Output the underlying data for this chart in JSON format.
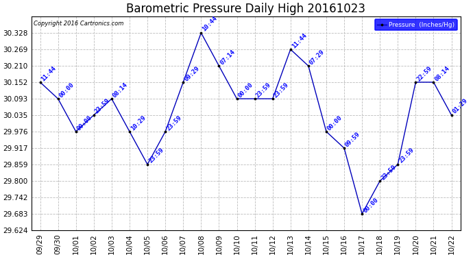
{
  "title": "Barometric Pressure Daily High 20161023",
  "copyright": "Copyright 2016 Cartronics.com",
  "legend_label": "Pressure  (Inches/Hg)",
  "xlabel_dates": [
    "09/29",
    "09/30",
    "10/01",
    "10/02",
    "10/03",
    "10/04",
    "10/05",
    "10/06",
    "10/07",
    "10/08",
    "10/09",
    "10/10",
    "10/11",
    "10/12",
    "10/13",
    "10/14",
    "10/15",
    "10/16",
    "10/17",
    "10/18",
    "10/19",
    "10/20",
    "10/21",
    "10/22"
  ],
  "x_indices": [
    0,
    1,
    2,
    3,
    4,
    5,
    6,
    7,
    8,
    9,
    10,
    11,
    12,
    13,
    14,
    15,
    16,
    17,
    18,
    19,
    20,
    21,
    22,
    23
  ],
  "y_values": [
    30.152,
    30.093,
    29.976,
    30.035,
    30.093,
    29.976,
    29.859,
    29.976,
    30.152,
    30.328,
    30.21,
    30.093,
    30.093,
    30.093,
    30.269,
    30.21,
    29.976,
    29.917,
    29.683,
    29.8,
    29.859,
    30.152,
    30.152,
    30.035
  ],
  "point_labels": [
    "11:44",
    "00:00",
    "00:00",
    "23:59",
    "08:14",
    "10:29",
    "23:59",
    "23:59",
    "09:29",
    "10:44",
    "07:14",
    "00:00",
    "23:59",
    "23:59",
    "11:44",
    "07:29",
    "00:00",
    "09:59",
    "00:00",
    "23:59",
    "23:59",
    "22:59",
    "08:14",
    "01:29"
  ],
  "yticks": [
    29.624,
    29.683,
    29.742,
    29.8,
    29.859,
    29.917,
    29.976,
    30.035,
    30.093,
    30.152,
    30.21,
    30.269,
    30.328
  ],
  "ylim_min": 29.624,
  "ylim_max": 30.387,
  "line_color": "#0000BB",
  "label_color": "#0000FF",
  "marker_color": "#000000",
  "bg_color": "#FFFFFF",
  "grid_color": "#BBBBBB",
  "title_fontsize": 12,
  "label_fontsize": 6.5,
  "tick_fontsize": 7.5,
  "axis_tick_fontsize": 7.5,
  "legend_facecolor": "#0000FF",
  "legend_textcolor": "#FFFFFF",
  "legend_edgecolor": "#0000FF"
}
